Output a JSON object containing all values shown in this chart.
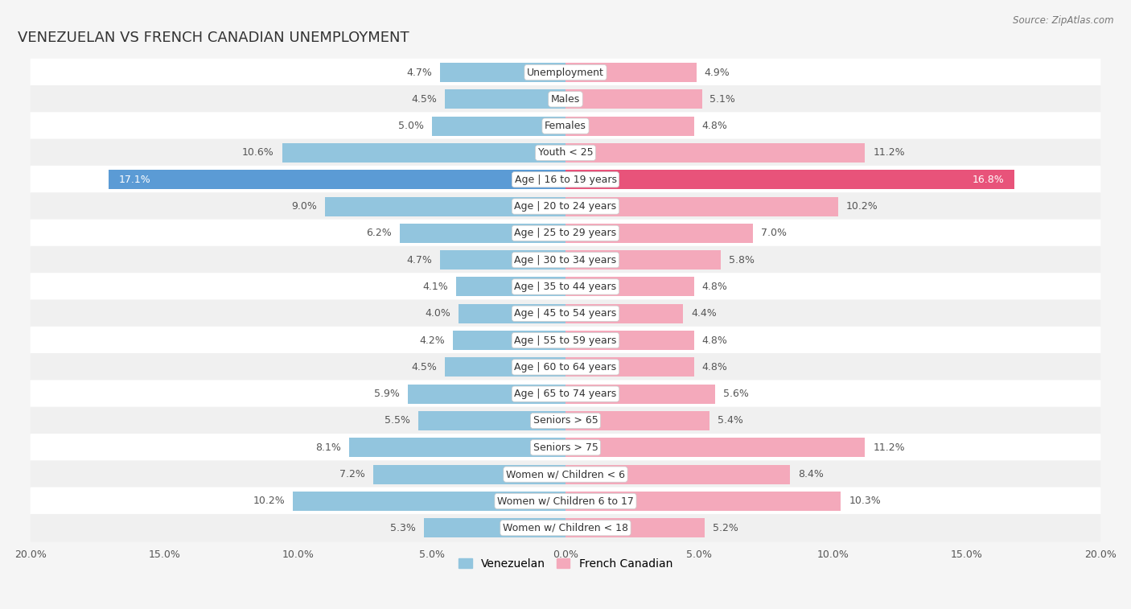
{
  "title": "VENEZUELAN VS FRENCH CANADIAN UNEMPLOYMENT",
  "source": "Source: ZipAtlas.com",
  "categories": [
    "Unemployment",
    "Males",
    "Females",
    "Youth < 25",
    "Age | 16 to 19 years",
    "Age | 20 to 24 years",
    "Age | 25 to 29 years",
    "Age | 30 to 34 years",
    "Age | 35 to 44 years",
    "Age | 45 to 54 years",
    "Age | 55 to 59 years",
    "Age | 60 to 64 years",
    "Age | 65 to 74 years",
    "Seniors > 65",
    "Seniors > 75",
    "Women w/ Children < 6",
    "Women w/ Children 6 to 17",
    "Women w/ Children < 18"
  ],
  "venezuelan": [
    4.7,
    4.5,
    5.0,
    10.6,
    17.1,
    9.0,
    6.2,
    4.7,
    4.1,
    4.0,
    4.2,
    4.5,
    5.9,
    5.5,
    8.1,
    7.2,
    10.2,
    5.3
  ],
  "french_canadian": [
    4.9,
    5.1,
    4.8,
    11.2,
    16.8,
    10.2,
    7.0,
    5.8,
    4.8,
    4.4,
    4.8,
    4.8,
    5.6,
    5.4,
    11.2,
    8.4,
    10.3,
    5.2
  ],
  "venezuelan_color": "#92c5de",
  "french_canadian_color": "#f4a9bb",
  "highlight_index": 4,
  "venezuelan_color_highlight": "#5b9bd5",
  "french_canadian_color_highlight": "#e8537a",
  "row_color_even": "#f0f0f0",
  "row_color_odd": "#ffffff",
  "background_color": "#f5f5f5",
  "max_val": 20.0,
  "bar_height": 0.72,
  "title_fontsize": 13,
  "label_fontsize": 9,
  "value_fontsize": 9,
  "legend_fontsize": 10
}
